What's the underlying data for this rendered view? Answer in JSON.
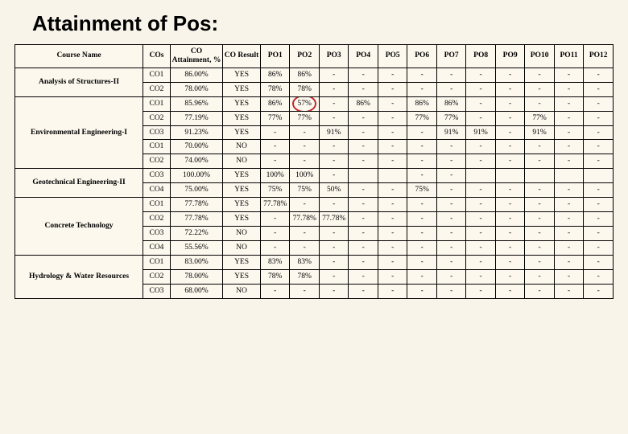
{
  "title": "Attainment of Pos:",
  "columns": [
    "Course Name",
    "COs",
    "CO Attainment, %",
    "CO Result",
    "PO1",
    "PO2",
    "PO3",
    "PO4",
    "PO5",
    "PO6",
    "PO7",
    "PO8",
    "PO9",
    "PO10",
    "PO11",
    "PO12"
  ],
  "col_widths_class": [
    "course-col",
    "cos-col",
    "att-col",
    "res-col",
    "po-col",
    "po-col",
    "po-col",
    "po-col",
    "po-col",
    "po-col",
    "po-col",
    "po-col",
    "po-col",
    "po-col",
    "po-col",
    "po-col"
  ],
  "courses": [
    {
      "name": "Analysis of Structures-II",
      "rows": [
        {
          "co": "CO1",
          "att": "86.00%",
          "res": "YES",
          "po": [
            "86%",
            "86%",
            "-",
            "-",
            "-",
            "-",
            "-",
            "-",
            "-",
            "-",
            "-",
            "-"
          ]
        },
        {
          "co": "CO2",
          "att": "78.00%",
          "res": "YES",
          "po": [
            "78%",
            "78%",
            "-",
            "-",
            "-",
            "-",
            "-",
            "-",
            "-",
            "-",
            "-",
            "-"
          ]
        }
      ]
    },
    {
      "name": "Environmental Engineering-I",
      "rows": [
        {
          "co": "CO1",
          "att": "85.96%",
          "res": "YES",
          "po": [
            "86%",
            "57%",
            "-",
            "86%",
            "-",
            "86%",
            "86%",
            "-",
            "-",
            "-",
            "-",
            "-"
          ],
          "circle_po": 1
        },
        {
          "co": "CO2",
          "att": "77.19%",
          "res": "YES",
          "po": [
            "77%",
            "77%",
            "-",
            "-",
            "-",
            "77%",
            "77%",
            "-",
            "-",
            "77%",
            "-",
            "-"
          ]
        },
        {
          "co": "CO3",
          "att": "91.23%",
          "res": "YES",
          "po": [
            "-",
            "-",
            "91%",
            "-",
            "-",
            "-",
            "91%",
            "91%",
            "-",
            "91%",
            "-",
            "-"
          ]
        },
        {
          "co": "CO1",
          "att": "70.00%",
          "res": "NO",
          "po": [
            "-",
            "-",
            "-",
            "-",
            "-",
            "-",
            "-",
            "-",
            "-",
            "-",
            "-",
            "-"
          ]
        },
        {
          "co": "CO2",
          "att": "74.00%",
          "res": "NO",
          "po": [
            "-",
            "-",
            "-",
            "-",
            "-",
            "-",
            "-",
            "-",
            "-",
            "-",
            "-",
            "-"
          ]
        }
      ]
    },
    {
      "name": "Geotechnical Engineering-II",
      "rows": [
        {
          "co": "CO3",
          "att": "100.00%",
          "res": "YES",
          "po": [
            "100%",
            "100%",
            "-",
            "",
            "",
            "-",
            "-",
            "",
            "",
            "",
            "",
            ""
          ]
        },
        {
          "co": "CO4",
          "att": "75.00%",
          "res": "YES",
          "po": [
            "75%",
            "75%",
            "50%",
            "-",
            "-",
            "75%",
            "-",
            "-",
            "-",
            "-",
            "-",
            "-"
          ]
        }
      ]
    },
    {
      "name": "Concrete Technology",
      "rows": [
        {
          "co": "CO1",
          "att": "77.78%",
          "res": "YES",
          "po": [
            "77.78%",
            "-",
            "-",
            "-",
            "-",
            "-",
            "-",
            "-",
            "-",
            "-",
            "-",
            "-"
          ]
        },
        {
          "co": "CO2",
          "att": "77.78%",
          "res": "YES",
          "po": [
            "-",
            "77.78%",
            "77.78%",
            "-",
            "-",
            "-",
            "-",
            "-",
            "-",
            "-",
            "-",
            "-"
          ]
        },
        {
          "co": "CO3",
          "att": "72.22%",
          "res": "NO",
          "po": [
            "-",
            "-",
            "-",
            "-",
            "-",
            "-",
            "-",
            "-",
            "-",
            "-",
            "-",
            "-"
          ]
        },
        {
          "co": "CO4",
          "att": "55.56%",
          "res": "NO",
          "po": [
            "-",
            "-",
            "-",
            "-",
            "-",
            "-",
            "-",
            "-",
            "-",
            "-",
            "-",
            "-"
          ]
        }
      ]
    },
    {
      "name": "Hydrology & Water Resources",
      "rows": [
        {
          "co": "CO1",
          "att": "83.00%",
          "res": "YES",
          "po": [
            "83%",
            "83%",
            "-",
            "-",
            "-",
            "-",
            "-",
            "-",
            "-",
            "-",
            "-",
            "-"
          ]
        },
        {
          "co": "CO2",
          "att": "78.00%",
          "res": "YES",
          "po": [
            "78%",
            "78%",
            "-",
            "-",
            "-",
            "-",
            "-",
            "-",
            "-",
            "-",
            "-",
            "-"
          ]
        },
        {
          "co": "CO3",
          "att": "68.00%",
          "res": "NO",
          "po": [
            "-",
            "-",
            "-",
            "-",
            "-",
            "-",
            "-",
            "-",
            "-",
            "-",
            "-",
            "-"
          ]
        }
      ]
    }
  ],
  "colors": {
    "page_bg": "#f8f4ea",
    "table_bg": "#fdf8ee",
    "border": "#000000",
    "circle": "#c1272d"
  }
}
